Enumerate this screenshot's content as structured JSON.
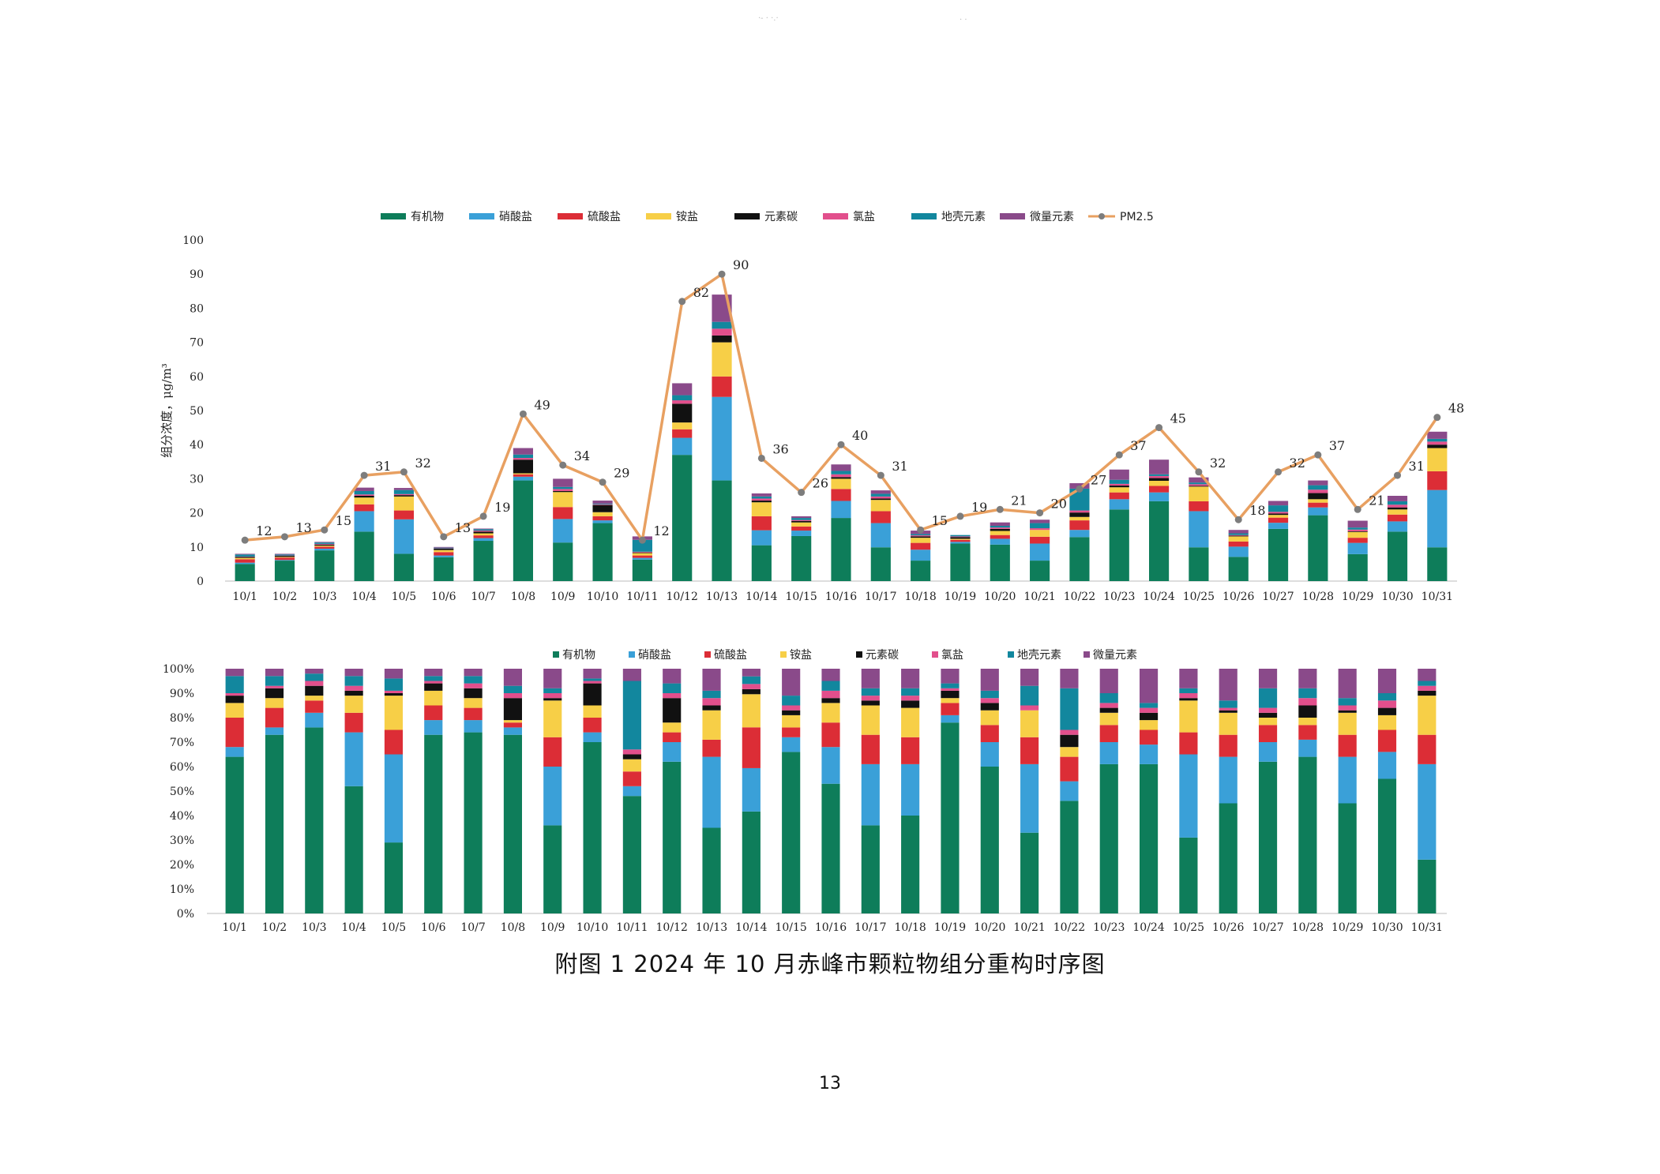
{
  "caption": "附图 1    2024 年 10 月赤峰市颗粒物组分重构时序图",
  "page_number": "13",
  "components": [
    {
      "name": "有机物",
      "color": "#0e7d5a"
    },
    {
      "name": "硝酸盐",
      "color": "#3aa0d8"
    },
    {
      "name": "硫酸盐",
      "color": "#dc2d36"
    },
    {
      "name": "铵盐",
      "color": "#f7cf47"
    },
    {
      "name": "元素碳",
      "color": "#111111"
    },
    {
      "name": "氯盐",
      "color": "#e24f8c"
    },
    {
      "name": "地壳元素",
      "color": "#12879e"
    },
    {
      "name": "微量元素",
      "color": "#8a4a8a"
    }
  ],
  "pm_series": {
    "name": "PM2.5",
    "line_color": "#e8a061",
    "marker_color": "#7d7d7d"
  },
  "chart_data": [
    {
      "type": "bar",
      "stacked": true,
      "ylabel": "组分浓度，μg/m³",
      "ylim": [
        0,
        100
      ],
      "yticks": [
        0,
        10,
        20,
        30,
        40,
        50,
        60,
        70,
        80,
        90,
        100
      ],
      "legend_position": "top",
      "categories": [
        "10/1",
        "10/2",
        "10/3",
        "10/4",
        "10/5",
        "10/6",
        "10/7",
        "10/8",
        "10/9",
        "10/10",
        "10/11",
        "10/12",
        "10/13",
        "10/14",
        "10/15",
        "10/16",
        "10/17",
        "10/18",
        "10/19",
        "10/20",
        "10/21",
        "10/22",
        "10/23",
        "10/24",
        "10/25",
        "10/26",
        "10/27",
        "10/28",
        "10/29",
        "10/30",
        "10/31"
      ],
      "series": [
        {
          "name": "有机物",
          "values": [
            5.0,
            6.0,
            9.0,
            14.5,
            8.0,
            7.0,
            11.8,
            29.5,
            11.3,
            17.0,
            6.3,
            37.0,
            29.5,
            10.5,
            13.2,
            18.5,
            9.9,
            6.0,
            11.0,
            10.7,
            6.0,
            12.9,
            21.0,
            23.4,
            9.9,
            7.1,
            15.3,
            19.3,
            7.9,
            14.5,
            9.9
          ]
        },
        {
          "name": "硝酸盐",
          "values": [
            0.4,
            0.2,
            0.5,
            6.0,
            10.1,
            0.5,
            0.8,
            1.1,
            6.9,
            0.8,
            0.5,
            5.0,
            24.5,
            4.4,
            1.6,
            5.0,
            7.1,
            3.2,
            0.5,
            1.7,
            5.0,
            2.1,
            3.0,
            2.6,
            10.6,
            3.0,
            1.8,
            2.3,
            3.3,
            3.0,
            16.8
          ]
        },
        {
          "name": "硫酸盐",
          "values": [
            1.0,
            0.7,
            0.6,
            2.0,
            2.6,
            1.0,
            0.8,
            0.7,
            3.5,
            1.2,
            0.7,
            2.5,
            6.0,
            4.1,
            1.2,
            3.5,
            3.5,
            2.0,
            0.6,
            1.1,
            2.0,
            2.8,
            2.0,
            1.9,
            2.9,
            1.5,
            1.5,
            1.4,
            1.5,
            2.0,
            5.5
          ]
        },
        {
          "name": "铵盐",
          "values": [
            0.4,
            0.2,
            0.3,
            2.0,
            4.1,
            0.6,
            0.6,
            0.3,
            4.4,
            1.2,
            0.7,
            2.0,
            10.0,
            4.1,
            1.2,
            3.0,
            3.3,
            1.5,
            0.3,
            1.2,
            2.0,
            1.0,
            1.5,
            1.5,
            4.3,
            1.5,
            0.8,
            1.0,
            1.7,
            1.5,
            6.8
          ]
        },
        {
          "name": "元素碳",
          "values": [
            0.3,
            0.3,
            0.3,
            0.5,
            0.4,
            0.4,
            0.5,
            4.0,
            0.3,
            2.1,
            0.2,
            5.5,
            2.0,
            0.5,
            0.4,
            0.5,
            0.4,
            0.4,
            0.5,
            0.6,
            0.0,
            1.3,
            0.5,
            0.8,
            0.2,
            0.2,
            0.4,
            1.8,
            0.2,
            0.6,
            1.0
          ]
        },
        {
          "name": "氯盐",
          "values": [
            0.1,
            0.1,
            0.2,
            0.4,
            0.3,
            0.1,
            0.3,
            0.5,
            0.6,
            0.2,
            0.2,
            1.0,
            2.0,
            0.6,
            0.3,
            0.8,
            0.6,
            0.3,
            0.2,
            0.4,
            0.5,
            0.6,
            0.5,
            0.6,
            0.5,
            0.2,
            0.5,
            1.0,
            0.5,
            0.8,
            0.9
          ]
        },
        {
          "name": "地壳元素",
          "values": [
            0.6,
            0.3,
            0.4,
            1.0,
            1.2,
            0.2,
            0.4,
            1.0,
            0.6,
            0.2,
            3.5,
            1.5,
            2.0,
            0.6,
            0.6,
            1.0,
            0.8,
            0.4,
            0.4,
            0.5,
            1.5,
            6.4,
            1.2,
            0.5,
            0.5,
            0.5,
            1.9,
            1.3,
            0.6,
            1.0,
            0.8
          ]
        },
        {
          "name": "微量元素",
          "values": [
            0.2,
            0.2,
            0.2,
            1.0,
            0.6,
            0.2,
            0.2,
            1.9,
            2.4,
            0.9,
            1.0,
            3.5,
            8.0,
            0.9,
            0.5,
            1.9,
            1.0,
            1.0,
            0.0,
            1.0,
            1.0,
            1.6,
            3.0,
            4.3,
            1.5,
            1.0,
            1.3,
            1.4,
            2.0,
            1.6,
            2.1
          ]
        }
      ],
      "line": {
        "name": "PM2.5",
        "values": [
          12,
          13,
          15,
          31,
          32,
          13,
          19,
          49,
          34,
          29,
          12,
          82,
          90,
          36,
          26,
          40,
          31,
          15,
          19,
          21,
          20,
          27,
          37,
          45,
          32,
          18,
          32,
          37,
          21,
          31,
          48
        ]
      }
    },
    {
      "type": "bar",
      "stacked": true,
      "normalized": true,
      "ylim": [
        0,
        100
      ],
      "yticks": [
        "0%",
        "10%",
        "20%",
        "30%",
        "40%",
        "50%",
        "60%",
        "70%",
        "80%",
        "90%",
        "100%"
      ],
      "legend_position": "top",
      "categories": [
        "10/1",
        "10/2",
        "10/3",
        "10/4",
        "10/5",
        "10/6",
        "10/7",
        "10/8",
        "10/9",
        "10/10",
        "10/11",
        "10/12",
        "10/13",
        "10/14",
        "10/15",
        "10/16",
        "10/17",
        "10/18",
        "10/19",
        "10/20",
        "10/21",
        "10/22",
        "10/23",
        "10/24",
        "10/25",
        "10/26",
        "10/27",
        "10/28",
        "10/29",
        "10/30",
        "10/31"
      ],
      "series": [
        {
          "name": "有机物",
          "values": [
            64,
            73,
            76,
            52,
            29,
            73,
            74,
            73,
            36,
            70,
            48,
            62,
            35,
            40,
            66,
            53,
            36,
            40,
            78,
            60,
            33,
            46,
            61,
            61,
            31,
            45,
            62,
            64,
            45,
            55,
            22
          ]
        },
        {
          "name": "硝酸盐",
          "values": [
            4,
            3,
            6,
            22,
            36,
            6,
            5,
            3,
            24,
            4,
            4,
            8,
            29,
            17,
            6,
            15,
            25,
            21,
            3,
            10,
            28,
            8,
            9,
            8,
            34,
            19,
            8,
            7,
            19,
            11,
            39
          ]
        },
        {
          "name": "硫酸盐",
          "values": [
            12,
            8,
            5,
            8,
            10,
            6,
            5,
            2,
            12,
            6,
            6,
            4,
            7,
            16,
            4,
            10,
            12,
            11,
            5,
            7,
            11,
            10,
            7,
            6,
            9,
            9,
            7,
            6,
            9,
            9,
            12
          ]
        },
        {
          "name": "铵盐",
          "values": [
            6,
            4,
            2,
            7,
            14,
            6,
            4,
            1,
            15,
            5,
            5,
            4,
            12,
            13,
            5,
            8,
            12,
            12,
            2,
            6,
            11,
            4,
            5,
            4,
            13,
            9,
            3,
            3,
            9,
            6,
            16
          ]
        },
        {
          "name": "元素碳",
          "values": [
            3,
            4,
            4,
            2,
            1,
            3,
            4,
            9,
            1,
            9,
            2,
            10,
            2,
            2,
            2,
            2,
            2,
            3,
            3,
            3,
            0,
            5,
            2,
            3,
            1,
            1,
            2,
            5,
            1,
            3,
            2
          ]
        },
        {
          "name": "氯盐",
          "values": [
            1,
            1,
            2,
            2,
            1,
            1,
            2,
            2,
            2,
            1,
            2,
            2,
            3,
            2,
            2,
            3,
            2,
            2,
            1,
            2,
            2,
            2,
            2,
            2,
            2,
            1,
            2,
            3,
            2,
            3,
            2
          ]
        },
        {
          "name": "地壳元素",
          "values": [
            7,
            4,
            3,
            4,
            5,
            2,
            3,
            3,
            2,
            1,
            28,
            4,
            3,
            3,
            4,
            4,
            3,
            3,
            2,
            3,
            8,
            17,
            4,
            2,
            2,
            3,
            8,
            4,
            3,
            3,
            2
          ]
        },
        {
          "name": "微量元素",
          "values": [
            3,
            3,
            2,
            3,
            4,
            3,
            3,
            7,
            8,
            4,
            5,
            6,
            9,
            3,
            11,
            5,
            8,
            8,
            6,
            9,
            7,
            8,
            10,
            14,
            8,
            13,
            8,
            8,
            12,
            10,
            5
          ]
        }
      ]
    }
  ]
}
